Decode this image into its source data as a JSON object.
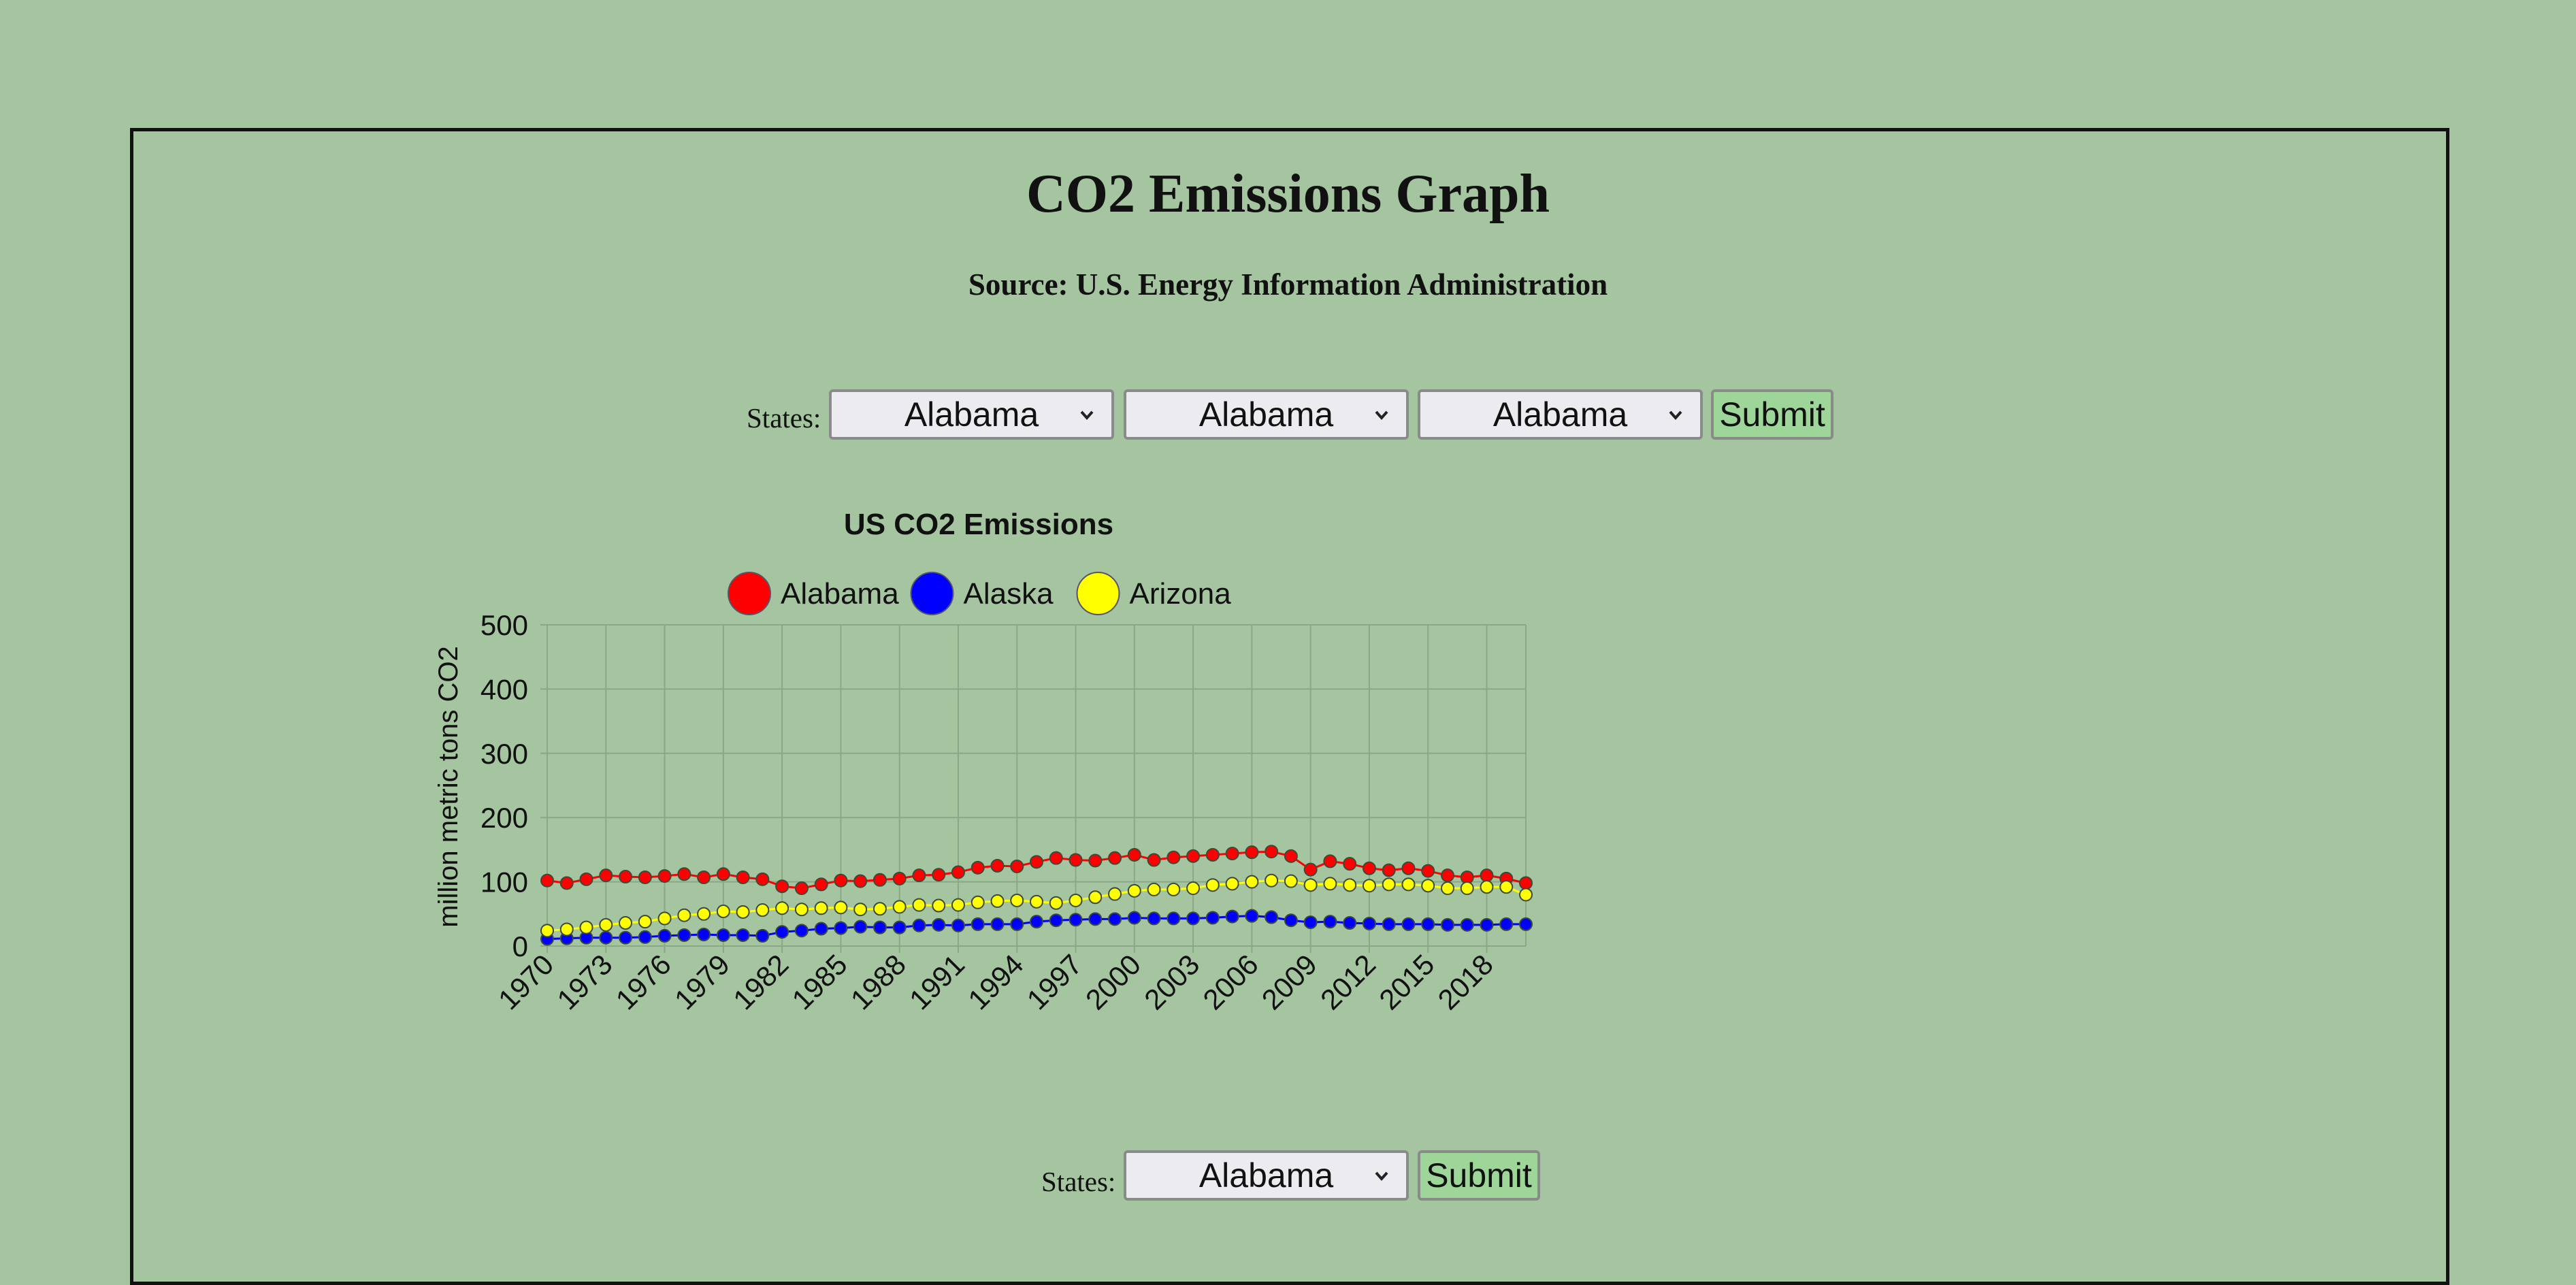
{
  "page": {
    "title": "CO2 Emissions Graph",
    "subtitle": "Source: U.S. Energy Information Administration"
  },
  "form_top": {
    "label": "States:",
    "selects": [
      "Alabama",
      "Alabama",
      "Alabama"
    ],
    "submit_label": "Submit"
  },
  "form_bottom": {
    "label": "States:",
    "select": "Alabama",
    "submit_label": "Submit"
  },
  "colors": {
    "background": "#a5c5a0",
    "alabama": "#ff0000",
    "alaska": "#0000ff",
    "arizona": "#ffff00"
  },
  "chart_data": {
    "type": "line",
    "title": "US CO2 Emissions",
    "xlabel": "",
    "ylabel": "million metric tons CO2",
    "ylim": [
      0,
      500
    ],
    "yticks": [
      0,
      100,
      200,
      300,
      400,
      500
    ],
    "grid": true,
    "legend_position": "top",
    "x": [
      1970,
      1971,
      1972,
      1973,
      1974,
      1975,
      1976,
      1977,
      1978,
      1979,
      1980,
      1981,
      1982,
      1983,
      1984,
      1985,
      1986,
      1987,
      1988,
      1989,
      1990,
      1991,
      1992,
      1993,
      1994,
      1995,
      1996,
      1997,
      1998,
      1999,
      2000,
      2001,
      2002,
      2003,
      2004,
      2005,
      2006,
      2007,
      2008,
      2009,
      2010,
      2011,
      2012,
      2013,
      2014,
      2015,
      2016,
      2017,
      2018,
      2019,
      2020
    ],
    "x_tick_labels": [
      "1970",
      "1973",
      "1976",
      "1979",
      "1982",
      "1985",
      "1988",
      "1991",
      "1994",
      "1997",
      "2000",
      "2003",
      "2006",
      "2009",
      "2012",
      "2015",
      "2018"
    ],
    "series": [
      {
        "name": "Alabama",
        "color": "#ff0000",
        "values": [
          102,
          98,
          104,
          110,
          108,
          107,
          109,
          112,
          107,
          112,
          107,
          104,
          93,
          90,
          96,
          102,
          101,
          103,
          105,
          110,
          111,
          115,
          122,
          125,
          124,
          131,
          137,
          134,
          133,
          137,
          142,
          134,
          138,
          140,
          142,
          144,
          146,
          147,
          140,
          119,
          132,
          128,
          121,
          118,
          121,
          117,
          110,
          107,
          110,
          105,
          98
        ]
      },
      {
        "name": "Alaska",
        "color": "#0000ff",
        "values": [
          11,
          12,
          13,
          13,
          13,
          14,
          16,
          17,
          18,
          17,
          17,
          16,
          22,
          24,
          27,
          28,
          30,
          29,
          29,
          32,
          33,
          32,
          34,
          34,
          34,
          38,
          40,
          41,
          42,
          42,
          44,
          43,
          43,
          43,
          44,
          46,
          47,
          45,
          40,
          37,
          38,
          36,
          35,
          34,
          34,
          34,
          33,
          33,
          33,
          34,
          34
        ]
      },
      {
        "name": "Arizona",
        "color": "#ffff00",
        "values": [
          24,
          26,
          29,
          33,
          36,
          38,
          43,
          48,
          50,
          54,
          53,
          56,
          59,
          57,
          59,
          60,
          57,
          58,
          61,
          64,
          63,
          64,
          68,
          70,
          71,
          69,
          67,
          71,
          76,
          81,
          86,
          88,
          88,
          90,
          95,
          97,
          100,
          102,
          101,
          95,
          97,
          95,
          94,
          96,
          96,
          94,
          90,
          90,
          92,
          92,
          80
        ]
      }
    ]
  }
}
